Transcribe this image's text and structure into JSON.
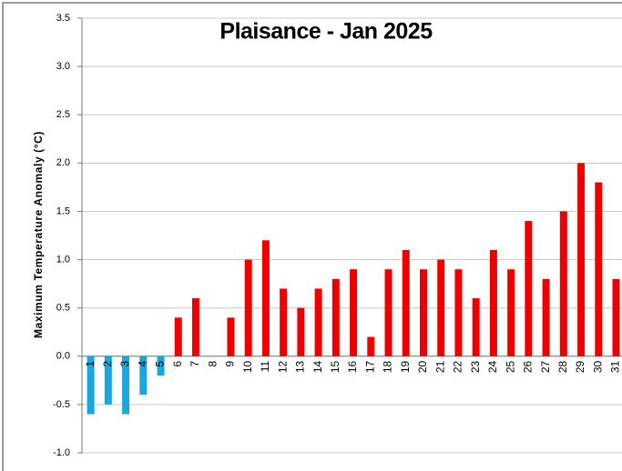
{
  "chart_data": {
    "type": "bar",
    "title": "Plaisance - Jan 2025",
    "y_label": "Maximum Temperature Anomaly (°C)",
    "categories": [
      "1",
      "2",
      "3",
      "4",
      "5",
      "6",
      "7",
      "8",
      "9",
      "10",
      "11",
      "12",
      "13",
      "14",
      "15",
      "16",
      "17",
      "18",
      "19",
      "20",
      "21",
      "22",
      "23",
      "24",
      "25",
      "26",
      "27",
      "28",
      "29",
      "30",
      "31"
    ],
    "values": [
      -0.6,
      -0.5,
      -0.6,
      -0.4,
      -0.2,
      0.4,
      0.6,
      0,
      0.4,
      1.0,
      1.2,
      0.7,
      0.5,
      0.7,
      0.8,
      0.9,
      0.2,
      0.9,
      1.1,
      0.9,
      1.0,
      0.9,
      0.6,
      1.1,
      0.9,
      1.4,
      0.8,
      1.5,
      2.0,
      1.8,
      0.8
    ],
    "color": "#ee0000",
    "negative_color": "#1aa6de",
    "ylim": [
      -1,
      3.5
    ],
    "yticks": [
      {
        "value": -1,
        "label": "-1.0"
      },
      -0.5,
      {
        "value": 0,
        "label": "0.0"
      },
      0.5,
      {
        "value": 1,
        "label": "1.0"
      },
      1.5,
      {
        "value": 2,
        "label": "2.0"
      },
      2.5,
      {
        "value": 3,
        "label": "3.0"
      },
      3.5
    ],
    "grid": true
  }
}
